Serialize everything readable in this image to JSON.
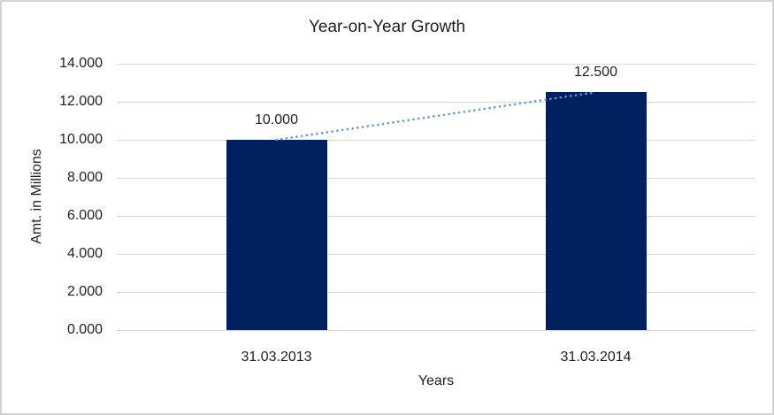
{
  "chart_data": {
    "type": "bar",
    "title": "Year-on-Year Growth",
    "xlabel": "Years",
    "ylabel": "Amt. in Millions",
    "categories": [
      "31.03.2013",
      "31.03.2014"
    ],
    "values": [
      10000,
      12500
    ],
    "data_labels": [
      "10.000",
      "12.500"
    ],
    "y_ticks": [
      {
        "value": 0,
        "label": "0.000"
      },
      {
        "value": 2000,
        "label": "2.000"
      },
      {
        "value": 4000,
        "label": "4.000"
      },
      {
        "value": 6000,
        "label": "6.000"
      },
      {
        "value": 8000,
        "label": "8.000"
      },
      {
        "value": 10000,
        "label": "10.000"
      },
      {
        "value": 12000,
        "label": "12.000"
      },
      {
        "value": 14000,
        "label": "14.000"
      }
    ],
    "ylim": [
      0,
      14000
    ],
    "grid": true,
    "legend": "none",
    "trendline": {
      "type": "linear",
      "style": "dotted",
      "from_value": 10000,
      "to_value": 12500
    },
    "colors": {
      "bar": "#002060",
      "trendline": "#5B9BD5",
      "gridline": "#D9D9D9",
      "text": "#1F1F1F",
      "border": "#D3D3D3",
      "background": "#FFFFFF"
    }
  }
}
